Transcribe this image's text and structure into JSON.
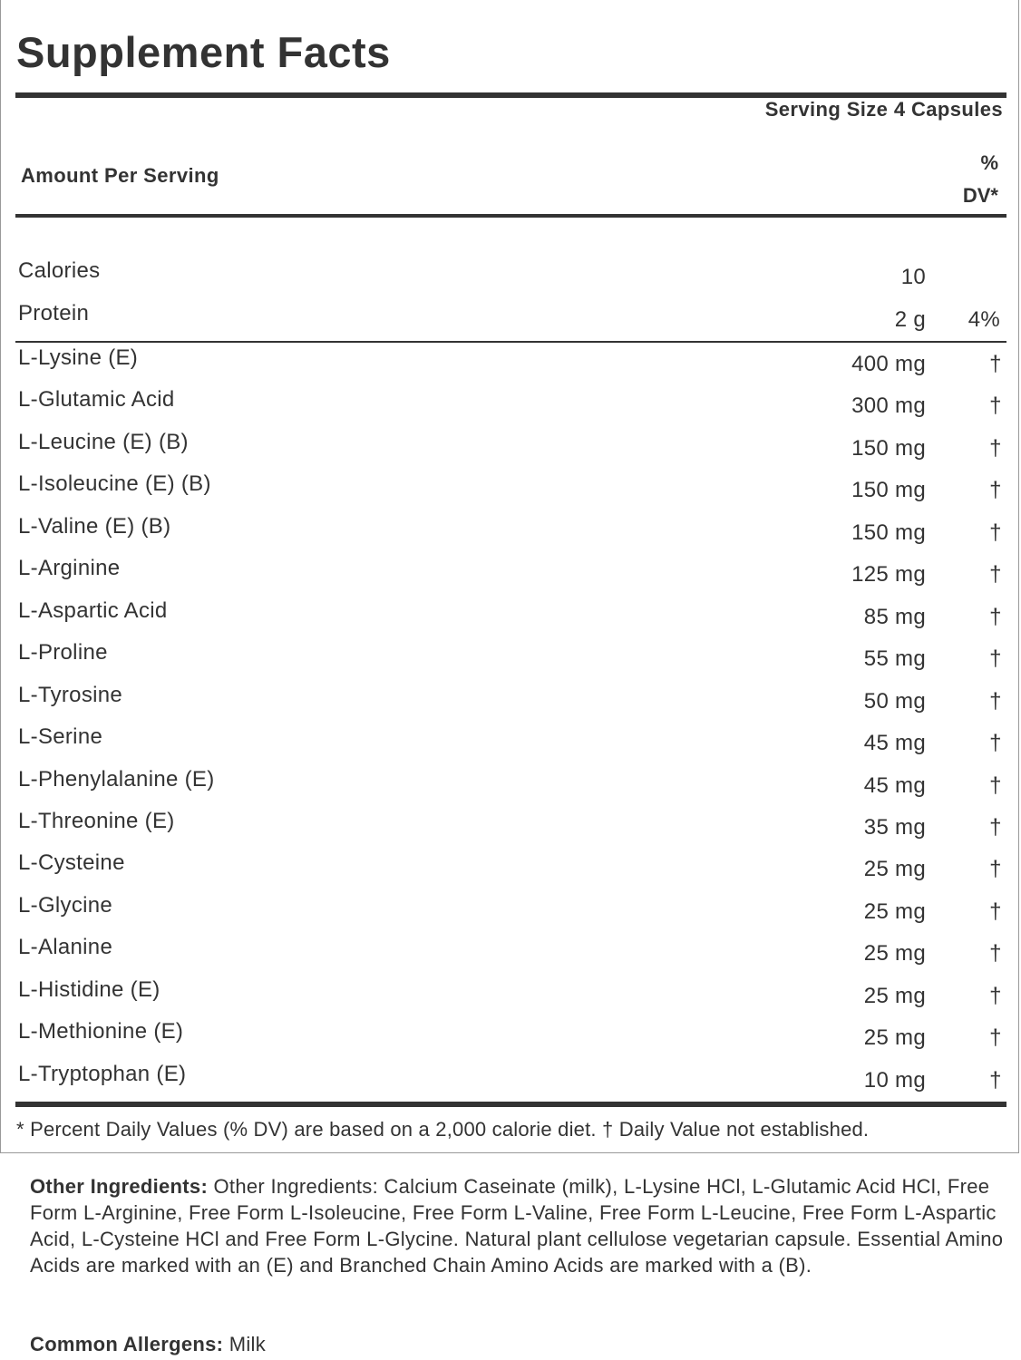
{
  "title": "Supplement Facts",
  "serving_size": "Serving Size 4 Capsules",
  "header": {
    "amount": "Amount Per Serving",
    "dv": "% DV*"
  },
  "nutrients": [
    {
      "name": "Calories",
      "amount": "10"
    },
    {
      "name": "Protein",
      "amount": "2 g",
      "dv": "4%"
    }
  ],
  "ingredients": [
    {
      "name": "L-Lysine (E)",
      "amount": "400 mg",
      "dv": "†"
    },
    {
      "name": "L-Glutamic Acid",
      "amount": "300 mg",
      "dv": "†"
    },
    {
      "name": "L-Leucine (E) (B)",
      "amount": "150 mg",
      "dv": "†"
    },
    {
      "name": "L-Isoleucine (E) (B)",
      "amount": "150 mg",
      "dv": "†"
    },
    {
      "name": "L-Valine (E) (B)",
      "amount": "150 mg",
      "dv": "†"
    },
    {
      "name": "L-Arginine",
      "amount": "125 mg",
      "dv": "†"
    },
    {
      "name": "L-Aspartic Acid",
      "amount": "85 mg",
      "dv": "†"
    },
    {
      "name": "L-Proline",
      "amount": "55 mg",
      "dv": "†"
    },
    {
      "name": "L-Tyrosine",
      "amount": "50 mg",
      "dv": "†"
    },
    {
      "name": "L-Serine",
      "amount": "45 mg",
      "dv": "†"
    },
    {
      "name": "L-Phenylalanine (E)",
      "amount": "45 mg",
      "dv": "†"
    },
    {
      "name": "L-Threonine (E)",
      "amount": "35 mg",
      "dv": "†"
    },
    {
      "name": "L-Cysteine",
      "amount": "25 mg",
      "dv": "†"
    },
    {
      "name": "L-Glycine",
      "amount": "25 mg",
      "dv": "†"
    },
    {
      "name": "L-Alanine",
      "amount": "25 mg",
      "dv": "†"
    },
    {
      "name": "L-Histidine (E)",
      "amount": "25 mg",
      "dv": "†"
    },
    {
      "name": "L-Methionine (E)",
      "amount": "25 mg",
      "dv": "†"
    },
    {
      "name": "L-Tryptophan (E)",
      "amount": "10 mg",
      "dv": "†"
    }
  ],
  "footnote": "* Percent Daily Values (% DV) are based on a 2,000 calorie diet. † Daily Value not established.",
  "other_ingredients": {
    "label": "Other Ingredients:",
    "text": "Other Ingredients: Calcium Caseinate (milk), L-Lysine HCl, L-Glutamic Acid HCl, Free Form L-Arginine, Free Form L-Isoleucine, Free Form L-Valine, Free Form L-Leucine, Free Form L-Aspartic Acid, L-Cysteine HCl and Free Form L-Glycine. Natural plant cellulose vegetarian capsule. Essential Amino Acids are marked with an (E) and Branched Chain Amino Acids are marked with a (B)."
  },
  "allergens": {
    "label": "Common Allergens:",
    "text": "Milk"
  }
}
